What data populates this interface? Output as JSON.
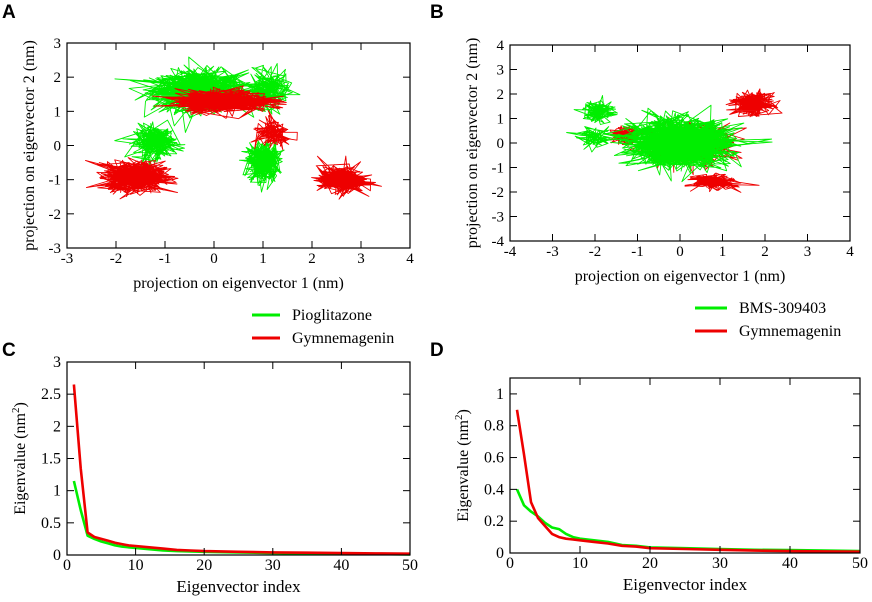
{
  "figure": {
    "background": "#ffffff"
  },
  "colors": {
    "green": "#00ee00",
    "red": "#ee0000"
  },
  "chart_data": [
    {
      "panel": "A",
      "type": "scatter",
      "render": "trajectory-line",
      "xlabel": "projection on eigenvector 1 (nm)",
      "ylabel": "projection on eigenvector 2 (nm)",
      "xlim": [
        -3,
        4
      ],
      "ylim": [
        -3,
        3
      ],
      "xticks": [
        -3,
        -2,
        -1,
        0,
        1,
        2,
        3,
        4
      ],
      "yticks": [
        -3,
        -2,
        -1,
        0,
        1,
        2,
        3
      ],
      "grid": false,
      "legend_position": "below-plot",
      "series": [
        {
          "name": "Pioglitazone",
          "color": "#00ee00",
          "clusters": [
            {
              "center": [
                -0.3,
                1.6
              ],
              "spread": [
                0.9,
                0.55
              ],
              "points": 650
            },
            {
              "center": [
                1.0,
                -0.5
              ],
              "spread": [
                0.3,
                0.55
              ],
              "points": 330
            },
            {
              "center": [
                -1.2,
                0.1
              ],
              "spread": [
                0.4,
                0.45
              ],
              "points": 250
            },
            {
              "center": [
                1.1,
                1.6
              ],
              "spread": [
                0.4,
                0.5
              ],
              "points": 200
            }
          ]
        },
        {
          "name": "Gymnemagenin",
          "color": "#ee0000",
          "clusters": [
            {
              "center": [
                -1.6,
                -0.9
              ],
              "spread": [
                0.55,
                0.4
              ],
              "points": 560
            },
            {
              "center": [
                2.6,
                -1.0
              ],
              "spread": [
                0.45,
                0.35
              ],
              "points": 400
            },
            {
              "center": [
                0.2,
                1.3
              ],
              "spread": [
                0.9,
                0.3
              ],
              "points": 420
            },
            {
              "center": [
                1.2,
                0.3
              ],
              "spread": [
                0.4,
                0.4
              ],
              "points": 120
            }
          ]
        }
      ]
    },
    {
      "panel": "B",
      "type": "scatter",
      "render": "trajectory-line",
      "xlabel": "projection on eigenvector 1 (nm)",
      "ylabel": "projection on eigenvector 2 (nm)",
      "xlim": [
        -4,
        4
      ],
      "ylim": [
        -4,
        4
      ],
      "xticks": [
        -4,
        -3,
        -2,
        -1,
        0,
        1,
        2,
        3,
        4
      ],
      "yticks": [
        -4,
        -3,
        -2,
        -1,
        0,
        1,
        2,
        3,
        4
      ],
      "grid": false,
      "legend_position": "below-plot",
      "series": [
        {
          "name": "Gymnemagenin",
          "color": "#ee0000",
          "clusters": [
            {
              "center": [
                1.7,
                1.6
              ],
              "spread": [
                0.4,
                0.4
              ],
              "points": 300
            },
            {
              "center": [
                0.8,
                -1.6
              ],
              "spread": [
                0.45,
                0.25
              ],
              "points": 260
            },
            {
              "center": [
                -1.3,
                0.3
              ],
              "spread": [
                0.3,
                0.3
              ],
              "points": 150
            },
            {
              "center": [
                0.2,
                0.0
              ],
              "spread": [
                1.0,
                0.8
              ],
              "points": 260
            }
          ]
        },
        {
          "name": "BMS-309403",
          "color": "#00ee00",
          "clusters": [
            {
              "center": [
                0.0,
                0.0
              ],
              "spread": [
                1.1,
                0.85
              ],
              "points": 1100
            },
            {
              "center": [
                -1.9,
                1.3
              ],
              "spread": [
                0.35,
                0.45
              ],
              "points": 120
            },
            {
              "center": [
                -2.0,
                0.2
              ],
              "spread": [
                0.4,
                0.35
              ],
              "points": 80
            }
          ]
        }
      ]
    },
    {
      "panel": "C",
      "type": "line",
      "xlabel": "Eigenvector index",
      "ylabel_main": "Eigenvalue (nm",
      "ylabel_sup": "2",
      "ylabel_close": ")",
      "xlim": [
        0,
        50
      ],
      "ylim": [
        0,
        3
      ],
      "xticks": [
        0,
        10,
        20,
        30,
        40,
        50
      ],
      "yticks": [
        0,
        0.5,
        1,
        1.5,
        2,
        2.5,
        3
      ],
      "grid": false,
      "series": [
        {
          "name": "Pioglitazone",
          "color": "#00ee00",
          "x": [
            1,
            2,
            3,
            4,
            5,
            6,
            7,
            8,
            9,
            10,
            12,
            14,
            16,
            18,
            20,
            25,
            30,
            35,
            40,
            45,
            50
          ],
          "y": [
            1.15,
            0.7,
            0.3,
            0.25,
            0.21,
            0.18,
            0.15,
            0.13,
            0.12,
            0.11,
            0.09,
            0.07,
            0.06,
            0.055,
            0.05,
            0.04,
            0.03,
            0.025,
            0.02,
            0.015,
            0.01
          ]
        },
        {
          "name": "Gymnemagenin",
          "color": "#ee0000",
          "x": [
            1,
            2,
            3,
            4,
            5,
            6,
            7,
            8,
            9,
            10,
            12,
            14,
            16,
            18,
            20,
            25,
            30,
            35,
            40,
            45,
            50
          ],
          "y": [
            2.65,
            1.35,
            0.35,
            0.28,
            0.25,
            0.22,
            0.19,
            0.17,
            0.15,
            0.14,
            0.12,
            0.1,
            0.08,
            0.07,
            0.06,
            0.05,
            0.04,
            0.035,
            0.03,
            0.025,
            0.02
          ]
        }
      ]
    },
    {
      "panel": "D",
      "type": "line",
      "xlabel": "Eigenvector index",
      "ylabel_main": "Eigenvalue (nm",
      "ylabel_sup": "2",
      "ylabel_close": ")",
      "xlim": [
        0,
        50
      ],
      "ylim": [
        0,
        1.1
      ],
      "xticks": [
        0,
        10,
        20,
        30,
        40,
        50
      ],
      "yticks": [
        0,
        0.2,
        0.4,
        0.6,
        0.8,
        1
      ],
      "grid": false,
      "series": [
        {
          "name": "BMS-309403",
          "color": "#00ee00",
          "x": [
            1,
            2,
            3,
            4,
            5,
            6,
            7,
            8,
            9,
            10,
            12,
            14,
            16,
            18,
            20,
            25,
            30,
            35,
            40,
            45,
            50
          ],
          "y": [
            0.4,
            0.3,
            0.26,
            0.23,
            0.19,
            0.16,
            0.15,
            0.12,
            0.1,
            0.09,
            0.08,
            0.07,
            0.05,
            0.045,
            0.035,
            0.03,
            0.025,
            0.02,
            0.018,
            0.015,
            0.012
          ]
        },
        {
          "name": "Gymnemagenin",
          "color": "#ee0000",
          "x": [
            1,
            2,
            3,
            4,
            5,
            6,
            7,
            8,
            9,
            10,
            12,
            14,
            16,
            18,
            20,
            25,
            30,
            35,
            40,
            45,
            50
          ],
          "y": [
            0.9,
            0.62,
            0.32,
            0.22,
            0.17,
            0.12,
            0.1,
            0.09,
            0.085,
            0.08,
            0.07,
            0.06,
            0.045,
            0.04,
            0.03,
            0.025,
            0.02,
            0.015,
            0.012,
            0.01,
            0.008
          ]
        }
      ]
    }
  ],
  "legends": [
    {
      "panel": "A",
      "entries": [
        {
          "name": "Pioglitazone",
          "color": "#00ee00"
        },
        {
          "name": "Gymnemagenin",
          "color": "#ee0000"
        }
      ]
    },
    {
      "panel": "B",
      "entries": [
        {
          "name": "BMS-309403",
          "color": "#00ee00"
        },
        {
          "name": "Gymnemagenin",
          "color": "#ee0000"
        }
      ]
    }
  ]
}
